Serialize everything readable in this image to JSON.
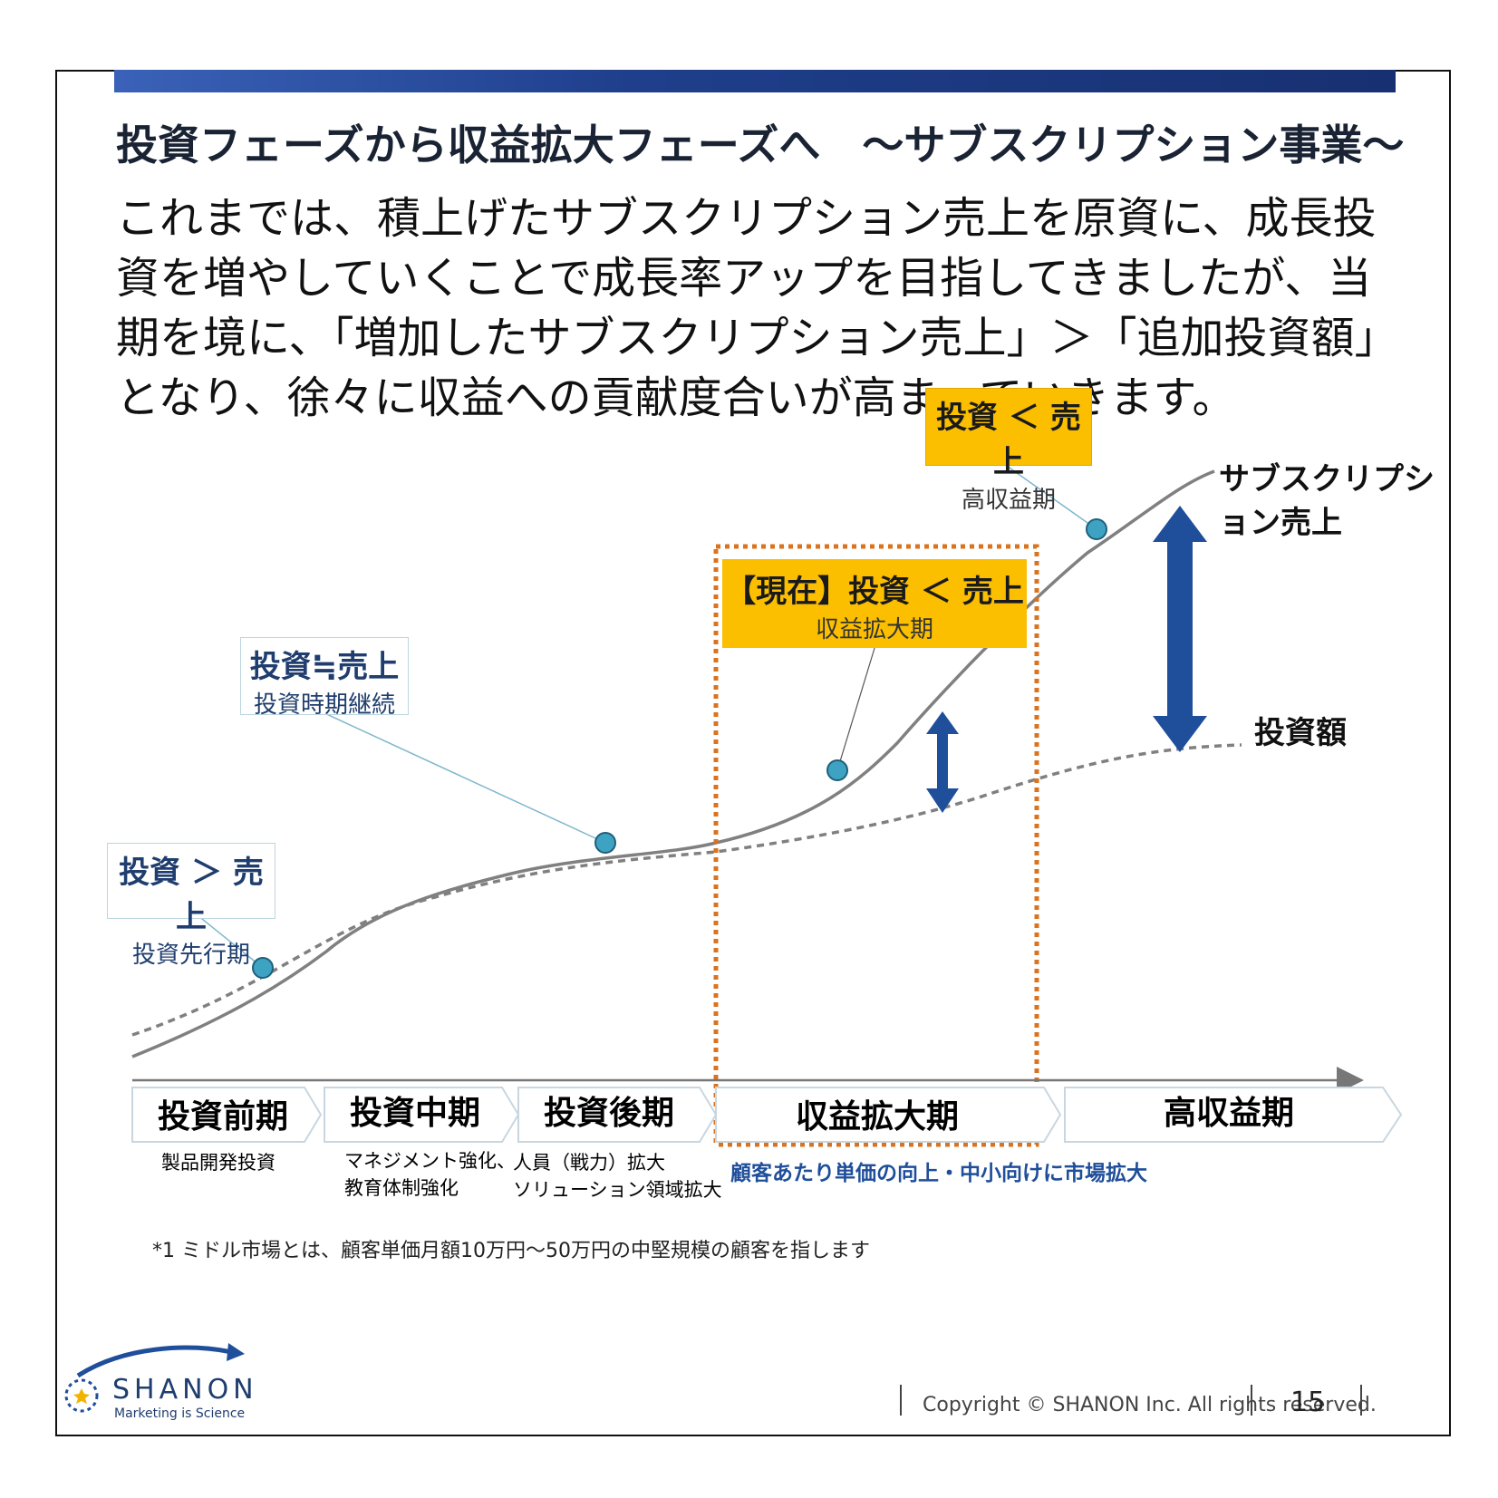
{
  "title": "投資フェーズから収益拡大フェーズへ　～サブスクリプション事業～",
  "body_text": "これまでは、積上げたサブスクリプション売上を原資に、成長投資を増やしていくことで成長率アップを目指してきましたが、当期を境に、「増加したサブスクリプション売上」＞「追加投資額」となり、徐々に収益への貢献度合いが高まっていきます。",
  "callouts": [
    {
      "main": "投資 ＞ 売上",
      "sub": "投資先行期"
    },
    {
      "main": "投資≒売上",
      "sub": "投資時期継続"
    },
    {
      "main": "【現在】投資 ＜ 売上",
      "sub": "収益拡大期"
    },
    {
      "main": "投資 ＜ 売上",
      "sub": "高収益期"
    }
  ],
  "line_labels": {
    "subscription": "サブスクリプション売上",
    "investment": "投資額"
  },
  "phases": [
    {
      "label": "投資前期",
      "note": [
        "製品開発投資"
      ]
    },
    {
      "label": "投資中期",
      "note": [
        "マネジメント強化、",
        "教育体制強化"
      ]
    },
    {
      "label": "投資後期",
      "note": [
        "人員（戦力）拡大",
        "ソリューション領域拡大"
      ]
    },
    {
      "label": "収益拡大期",
      "note": [
        "顧客あたり単価の向上・中小向けに市場拡大"
      ]
    },
    {
      "label": "高収益期",
      "note": []
    }
  ],
  "footnote": "*1 ミドル市場とは、顧客単価月額10万円～50万円の中堅規模の顧客を指します",
  "brand": {
    "name": "SHANON",
    "tagline": "Marketing is Science"
  },
  "copyright": "Copyright © SHANON Inc. All rights reserved.",
  "page_number": "15",
  "colors": {
    "accent_blue": "#1f4e9a",
    "callout_yellow": "#fbbf00",
    "dot_teal": "#3ea3c2",
    "dashed_orange": "#d9731f",
    "curve_gray": "#808080",
    "note_blue": "#1f4e9a"
  }
}
